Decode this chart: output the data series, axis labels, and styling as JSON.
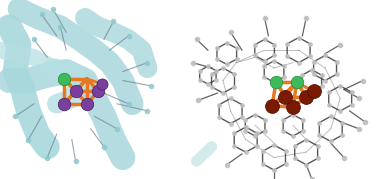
{
  "background_color": "#ffffff",
  "panel_left": {
    "ribbon_color": "#a8d8dc",
    "ribbon_color2": "#b5dfe3",
    "stick_color": "#708090",
    "stick_atom_color": "#90c8cc",
    "cubane_bond_color_orange": "#e87820",
    "cubane_bond_color_black": "#1a1a1a",
    "mn_color": "#7a3f9d",
    "ca_color": "#3dba5a",
    "o_color": "#cc3300"
  },
  "panel_right": {
    "ligand_color": "#909090",
    "ligand_color_dark": "#3a3a3a",
    "ligand_atom_color": "#c0c0c0",
    "cubane_bond_color_orange": "#e87820",
    "cubane_bond_color_dark": "#7a1a00",
    "mn_color": "#7a1a00",
    "ca_color": "#3dba5a",
    "ribbon_color": "#a8d8dc"
  },
  "figsize": [
    3.78,
    1.79
  ],
  "dpi": 100
}
